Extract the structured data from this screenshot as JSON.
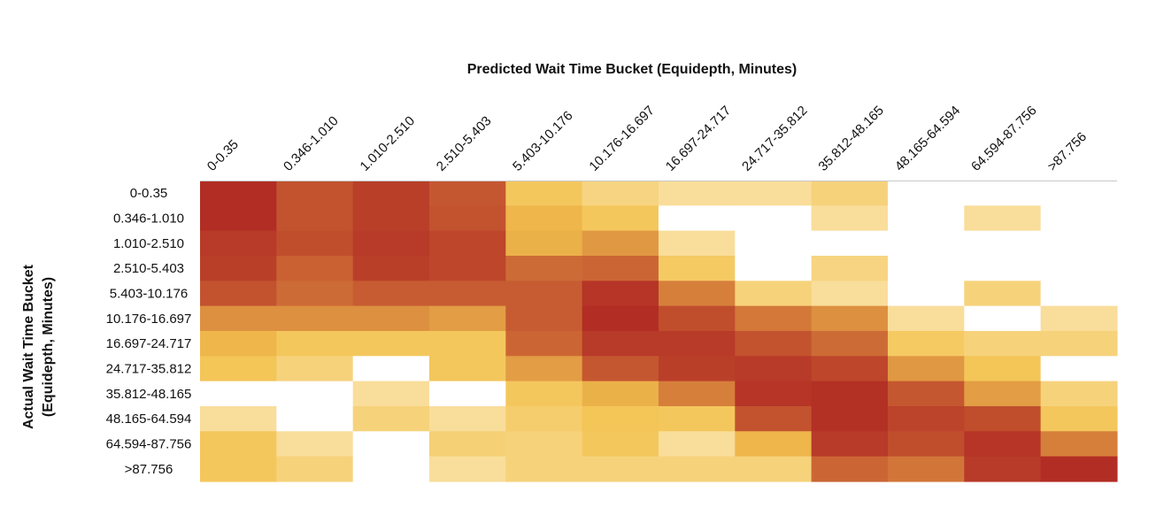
{
  "chart_data": {
    "type": "heatmap",
    "title": "Predicted Wait Time Bucket (Equidepth, Minutes)",
    "xlabel": "Predicted Wait Time Bucket (Equidepth, Minutes)",
    "ylabel_line1": "Actual Wait Time Bucket",
    "ylabel_line2": "(Equidepth, Minutes)",
    "x_categories": [
      "0-0.35",
      "0.346-1.010",
      "1.010-2.510",
      "2.510-5.403",
      "5.403-10.176",
      "10.176-16.697",
      "16.697-24.717",
      "24.717-35.812",
      "35.812-48.165",
      "48.165-64.594",
      "64.594-87.756",
      ">87.756"
    ],
    "y_categories": [
      "0-0.35",
      "0.346-1.010",
      "1.010-2.510",
      "2.510-5.403",
      "5.403-10.176",
      "10.176-16.697",
      "16.697-24.717",
      "24.717-35.812",
      "35.812-48.165",
      "48.165-64.594",
      "64.594-87.756",
      ">87.756"
    ],
    "color_scale": {
      "empty": "#ffffff",
      "low": "#fbe8b8",
      "mid": "#f3c24e",
      "high": "#ad2121"
    },
    "values": [
      [
        0.95,
        0.8,
        0.88,
        0.78,
        0.3,
        0.18,
        0.1,
        0.1,
        0.2,
        0.0,
        0.0,
        0.0
      ],
      [
        0.95,
        0.8,
        0.88,
        0.8,
        0.4,
        0.3,
        0.0,
        0.0,
        0.1,
        0.0,
        0.1,
        0.0
      ],
      [
        0.9,
        0.82,
        0.9,
        0.85,
        0.42,
        0.52,
        0.1,
        0.0,
        0.0,
        0.0,
        0.0,
        0.0
      ],
      [
        0.88,
        0.74,
        0.88,
        0.85,
        0.7,
        0.72,
        0.28,
        0.0,
        0.18,
        0.0,
        0.0,
        0.0
      ],
      [
        0.8,
        0.7,
        0.76,
        0.76,
        0.76,
        0.92,
        0.62,
        0.2,
        0.1,
        0.0,
        0.2,
        0.0
      ],
      [
        0.55,
        0.55,
        0.55,
        0.5,
        0.76,
        0.95,
        0.82,
        0.65,
        0.55,
        0.1,
        0.0,
        0.1
      ],
      [
        0.4,
        0.3,
        0.3,
        0.3,
        0.72,
        0.9,
        0.9,
        0.8,
        0.7,
        0.28,
        0.2,
        0.2
      ],
      [
        0.32,
        0.2,
        0.0,
        0.3,
        0.5,
        0.78,
        0.88,
        0.9,
        0.85,
        0.52,
        0.32,
        0.0
      ],
      [
        0.0,
        0.0,
        0.1,
        0.0,
        0.3,
        0.42,
        0.62,
        0.92,
        0.94,
        0.78,
        0.5,
        0.2
      ],
      [
        0.1,
        0.0,
        0.2,
        0.1,
        0.25,
        0.32,
        0.3,
        0.8,
        0.94,
        0.86,
        0.82,
        0.3
      ],
      [
        0.3,
        0.1,
        0.0,
        0.22,
        0.2,
        0.3,
        0.1,
        0.4,
        0.9,
        0.82,
        0.92,
        0.62
      ],
      [
        0.3,
        0.2,
        0.0,
        0.1,
        0.2,
        0.2,
        0.2,
        0.2,
        0.72,
        0.66,
        0.9,
        0.95
      ]
    ]
  }
}
